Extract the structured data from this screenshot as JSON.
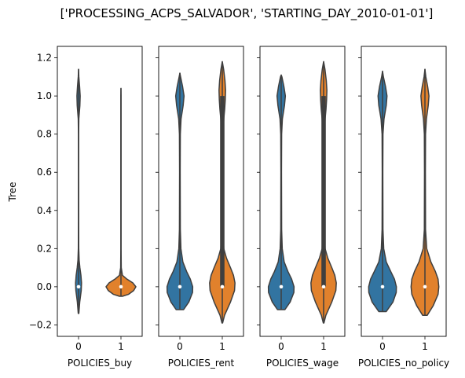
{
  "chart_data": {
    "type": "violin",
    "title": "['PROCESSING_ACPS_SALVADOR', 'STARTING_DAY_2010-01-01']",
    "ylabel": "Tree",
    "ylim": [
      -0.26,
      1.26
    ],
    "yticks": [
      -0.2,
      0.0,
      0.2,
      0.4,
      0.6,
      0.8,
      1.0,
      1.2
    ],
    "ytick_labels": [
      "−0.2",
      "0.0",
      "0.2",
      "0.4",
      "0.6",
      "0.8",
      "1.0",
      "1.2"
    ],
    "categories": [
      "0",
      "1"
    ],
    "colors": [
      "#3274a1",
      "#e1812c"
    ],
    "panels": [
      {
        "xlabel": "POLICIES_buy",
        "violins": [
          {
            "category": "0",
            "min": -0.14,
            "max": 1.14,
            "median": 0.0,
            "q1": 0.0,
            "q3": 0.0,
            "profile": [
              [
                -0.14,
                0.02
              ],
              [
                -0.08,
                0.08
              ],
              [
                -0.02,
                0.18
              ],
              [
                0.02,
                0.2
              ],
              [
                0.06,
                0.16
              ],
              [
                0.1,
                0.09
              ],
              [
                0.14,
                0.04
              ],
              [
                0.2,
                0.015
              ],
              [
                0.35,
                0.008
              ],
              [
                0.6,
                0.006
              ],
              [
                0.8,
                0.008
              ],
              [
                0.88,
                0.02
              ],
              [
                0.95,
                0.09
              ],
              [
                1.0,
                0.11
              ],
              [
                1.05,
                0.07
              ],
              [
                1.1,
                0.02
              ],
              [
                1.14,
                0.0
              ]
            ]
          },
          {
            "category": "1",
            "min": -0.05,
            "max": 1.04,
            "median": 0.0,
            "q1": 0.0,
            "q3": 0.0,
            "profile": [
              [
                -0.05,
                0.1
              ],
              [
                -0.04,
                0.5
              ],
              [
                -0.02,
                0.85
              ],
              [
                0.0,
                1.0
              ],
              [
                0.02,
                0.8
              ],
              [
                0.04,
                0.4
              ],
              [
                0.06,
                0.1
              ],
              [
                0.1,
                0.02
              ],
              [
                0.2,
                0.008
              ],
              [
                0.6,
                0.008
              ],
              [
                1.0,
                0.008
              ],
              [
                1.04,
                0.0
              ]
            ]
          }
        ]
      },
      {
        "xlabel": "POLICIES_rent",
        "violins": [
          {
            "category": "0",
            "min": -0.12,
            "max": 1.12,
            "median": 0.0,
            "q1": 0.0,
            "q3": 0.0,
            "profile": [
              [
                -0.12,
                0.25
              ],
              [
                -0.08,
                0.6
              ],
              [
                -0.03,
                0.85
              ],
              [
                0.0,
                0.86
              ],
              [
                0.04,
                0.7
              ],
              [
                0.08,
                0.45
              ],
              [
                0.13,
                0.2
              ],
              [
                0.2,
                0.07
              ],
              [
                0.3,
                0.03
              ],
              [
                0.6,
                0.02
              ],
              [
                0.8,
                0.03
              ],
              [
                0.88,
                0.08
              ],
              [
                0.95,
                0.22
              ],
              [
                1.0,
                0.28
              ],
              [
                1.05,
                0.18
              ],
              [
                1.1,
                0.05
              ],
              [
                1.12,
                0.0
              ]
            ]
          },
          {
            "category": "1",
            "min": -0.19,
            "max": 1.18,
            "median": 0.0,
            "q1": 0.0,
            "q3": 1.0,
            "profile": [
              [
                -0.19,
                0.02
              ],
              [
                -0.15,
                0.15
              ],
              [
                -0.08,
                0.55
              ],
              [
                -0.02,
                0.82
              ],
              [
                0.02,
                0.85
              ],
              [
                0.06,
                0.75
              ],
              [
                0.1,
                0.55
              ],
              [
                0.15,
                0.28
              ],
              [
                0.2,
                0.1
              ],
              [
                0.3,
                0.05
              ],
              [
                0.6,
                0.045
              ],
              [
                0.8,
                0.06
              ],
              [
                0.88,
                0.1
              ],
              [
                0.93,
                0.16
              ],
              [
                0.98,
                0.2
              ],
              [
                1.03,
                0.22
              ],
              [
                1.08,
                0.18
              ],
              [
                1.14,
                0.09
              ],
              [
                1.18,
                0.0
              ]
            ]
          }
        ]
      },
      {
        "xlabel": "POLICIES_wage",
        "violins": [
          {
            "category": "0",
            "min": -0.12,
            "max": 1.11,
            "median": 0.0,
            "q1": 0.0,
            "q3": 0.0,
            "profile": [
              [
                -0.12,
                0.25
              ],
              [
                -0.08,
                0.6
              ],
              [
                -0.03,
                0.85
              ],
              [
                0.0,
                0.86
              ],
              [
                0.04,
                0.7
              ],
              [
                0.08,
                0.45
              ],
              [
                0.13,
                0.2
              ],
              [
                0.2,
                0.07
              ],
              [
                0.3,
                0.03
              ],
              [
                0.6,
                0.02
              ],
              [
                0.8,
                0.03
              ],
              [
                0.88,
                0.08
              ],
              [
                0.95,
                0.22
              ],
              [
                1.0,
                0.28
              ],
              [
                1.05,
                0.18
              ],
              [
                1.1,
                0.05
              ],
              [
                1.11,
                0.0
              ]
            ]
          },
          {
            "category": "1",
            "min": -0.19,
            "max": 1.18,
            "median": 0.0,
            "q1": 0.0,
            "q3": 1.0,
            "profile": [
              [
                -0.19,
                0.02
              ],
              [
                -0.15,
                0.15
              ],
              [
                -0.08,
                0.55
              ],
              [
                -0.02,
                0.82
              ],
              [
                0.02,
                0.85
              ],
              [
                0.06,
                0.75
              ],
              [
                0.1,
                0.55
              ],
              [
                0.15,
                0.28
              ],
              [
                0.2,
                0.1
              ],
              [
                0.3,
                0.05
              ],
              [
                0.6,
                0.045
              ],
              [
                0.8,
                0.06
              ],
              [
                0.88,
                0.1
              ],
              [
                0.93,
                0.16
              ],
              [
                0.98,
                0.2
              ],
              [
                1.03,
                0.22
              ],
              [
                1.08,
                0.18
              ],
              [
                1.14,
                0.09
              ],
              [
                1.18,
                0.0
              ]
            ]
          }
        ]
      },
      {
        "xlabel": "POLICIES_no_policy",
        "violins": [
          {
            "category": "0",
            "min": -0.13,
            "max": 1.13,
            "median": 0.0,
            "q1": 0.0,
            "q3": 0.0,
            "profile": [
              [
                -0.13,
                0.25
              ],
              [
                -0.08,
                0.7
              ],
              [
                -0.03,
                0.92
              ],
              [
                0.0,
                0.93
              ],
              [
                0.04,
                0.8
              ],
              [
                0.08,
                0.55
              ],
              [
                0.13,
                0.25
              ],
              [
                0.2,
                0.08
              ],
              [
                0.3,
                0.03
              ],
              [
                0.6,
                0.02
              ],
              [
                0.8,
                0.03
              ],
              [
                0.88,
                0.1
              ],
              [
                0.95,
                0.25
              ],
              [
                1.0,
                0.3
              ],
              [
                1.05,
                0.2
              ],
              [
                1.1,
                0.06
              ],
              [
                1.13,
                0.0
              ]
            ]
          },
          {
            "category": "1",
            "min": -0.15,
            "max": 1.14,
            "median": 0.0,
            "q1": 0.0,
            "q3": 0.0,
            "profile": [
              [
                -0.15,
                0.15
              ],
              [
                -0.1,
                0.55
              ],
              [
                -0.04,
                0.88
              ],
              [
                0.0,
                0.93
              ],
              [
                0.04,
                0.88
              ],
              [
                0.08,
                0.7
              ],
              [
                0.13,
                0.4
              ],
              [
                0.2,
                0.12
              ],
              [
                0.3,
                0.04
              ],
              [
                0.6,
                0.03
              ],
              [
                0.8,
                0.04
              ],
              [
                0.88,
                0.1
              ],
              [
                0.95,
                0.22
              ],
              [
                1.0,
                0.27
              ],
              [
                1.05,
                0.18
              ],
              [
                1.1,
                0.06
              ],
              [
                1.14,
                0.0
              ]
            ]
          }
        ]
      }
    ]
  }
}
